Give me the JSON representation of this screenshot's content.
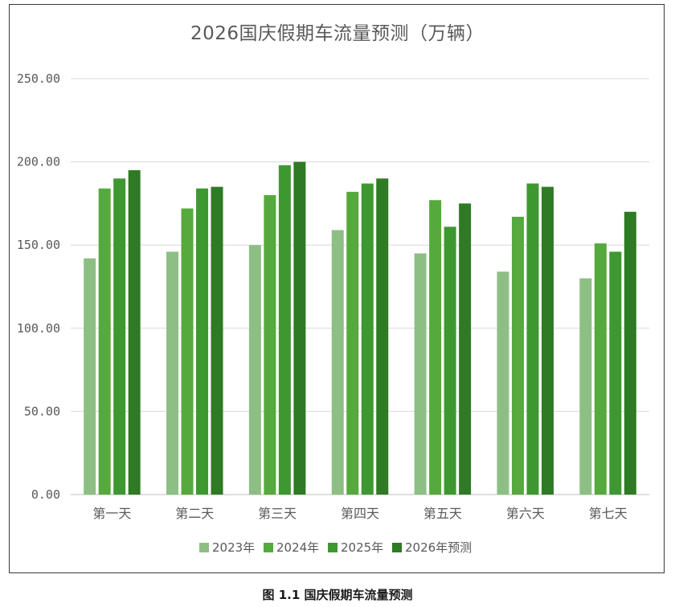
{
  "chart_data": {
    "type": "bar",
    "title": "2026国庆假期车流量预测（万辆）",
    "xlabel": "",
    "ylabel": "",
    "ylim": [
      0,
      250
    ],
    "yticks": [
      0,
      50,
      100,
      150,
      200,
      250
    ],
    "ytick_labels": [
      "0.00",
      "50.00",
      "100.00",
      "150.00",
      "200.00",
      "250.00"
    ],
    "grid": true,
    "legend_position": "bottom",
    "categories": [
      "第一天",
      "第二天",
      "第三天",
      "第四天",
      "第五天",
      "第六天",
      "第七天"
    ],
    "series": [
      {
        "name": "2023年",
        "color": "#8dbf85",
        "values": [
          142,
          146,
          150,
          159,
          145,
          134,
          130
        ]
      },
      {
        "name": "2024年",
        "color": "#56a93c",
        "values": [
          184,
          172,
          180,
          182,
          177,
          167,
          151
        ]
      },
      {
        "name": "2025年",
        "color": "#3d9830",
        "values": [
          190,
          184,
          198,
          187,
          161,
          187,
          146
        ]
      },
      {
        "name": "2026年预测",
        "color": "#2f7a24",
        "values": [
          195,
          185,
          200,
          190,
          175,
          185,
          170
        ]
      }
    ]
  },
  "caption": "图 1.1 国庆假期车流量预测"
}
